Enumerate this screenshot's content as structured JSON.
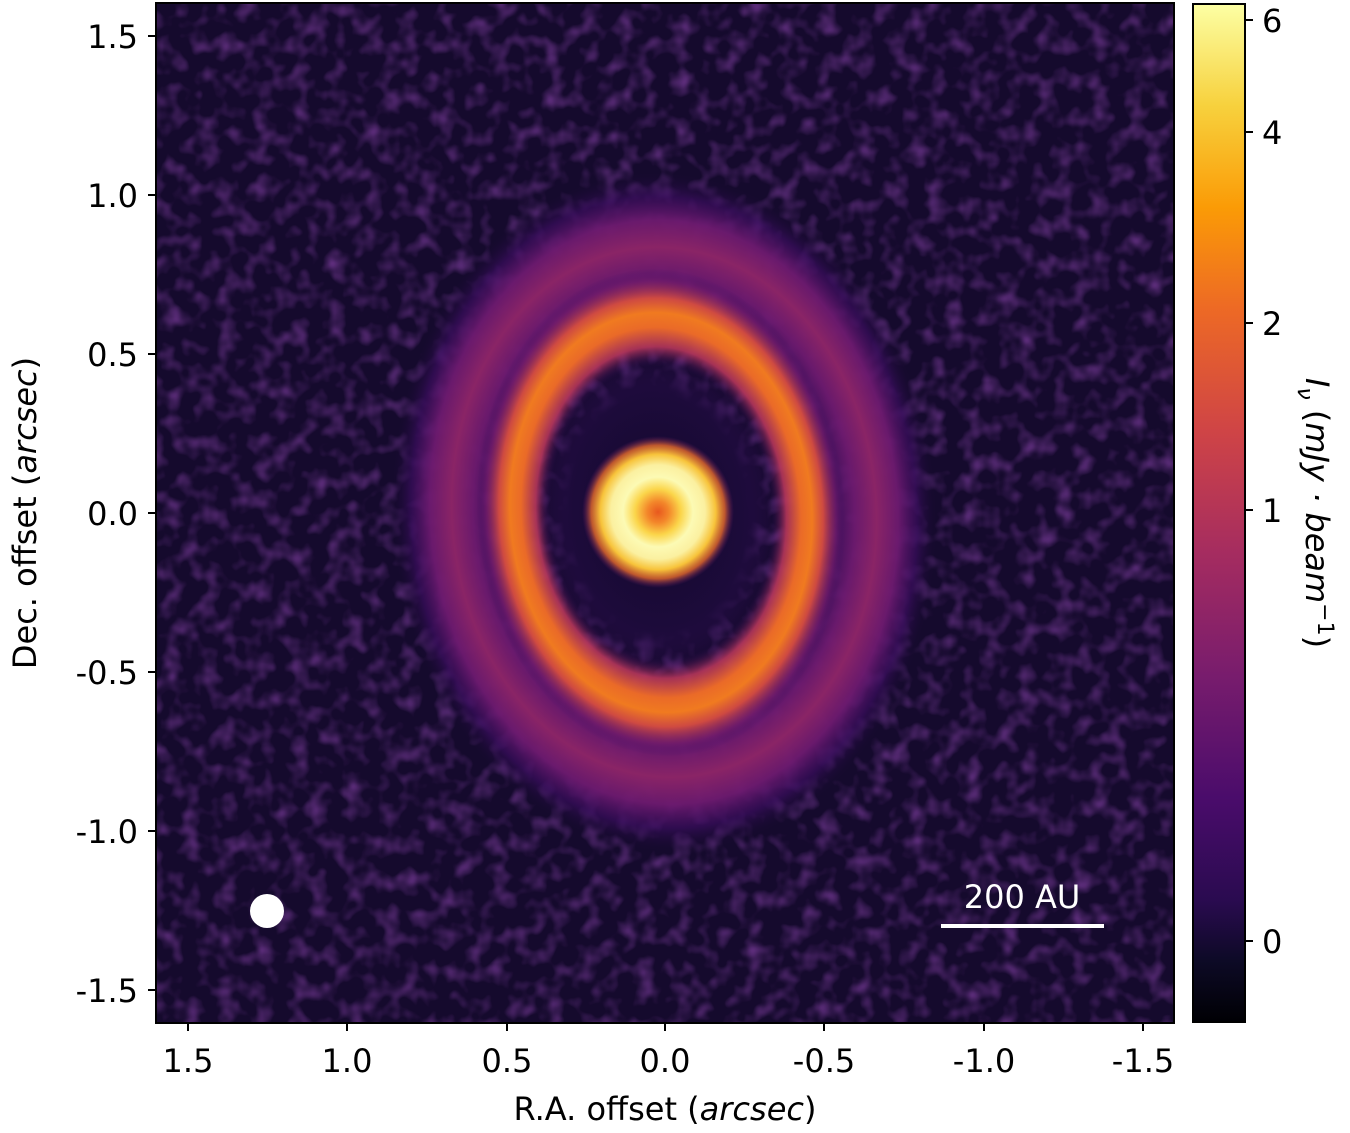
{
  "image": {
    "x_tick_labels": [
      "1.5",
      "1.0",
      "0.5",
      "0.0",
      "-0.5",
      "-1.0",
      "-1.5"
    ],
    "y_tick_labels": [
      "1.5",
      "1.0",
      "0.5",
      "0.0",
      "-0.5",
      "-1.0",
      "-1.5"
    ],
    "x_label_prefix": "R.A. offset (",
    "x_label_unit": "arcsec",
    "x_label_suffix": ")",
    "y_label_prefix": "Dec. offset (",
    "y_label_unit": "arcsec",
    "y_label_suffix": ")",
    "scale_bar_label": "200 AU",
    "colorbar_tick_labels": [
      "6",
      "4",
      "2",
      "1",
      "0"
    ],
    "colorbar_label_sym": "I",
    "colorbar_label_sub": "ν",
    "colorbar_label_open": " (",
    "colorbar_label_unit": "mJy · beam",
    "colorbar_label_sup": "−1",
    "colorbar_label_close": ")",
    "colormap": [
      "#000004",
      "#1b0c41",
      "#4a0c6b",
      "#781c6d",
      "#a52c60",
      "#cf4446",
      "#ed6925",
      "#fb9b06",
      "#f7d13d",
      "#fcffa4"
    ]
  }
}
